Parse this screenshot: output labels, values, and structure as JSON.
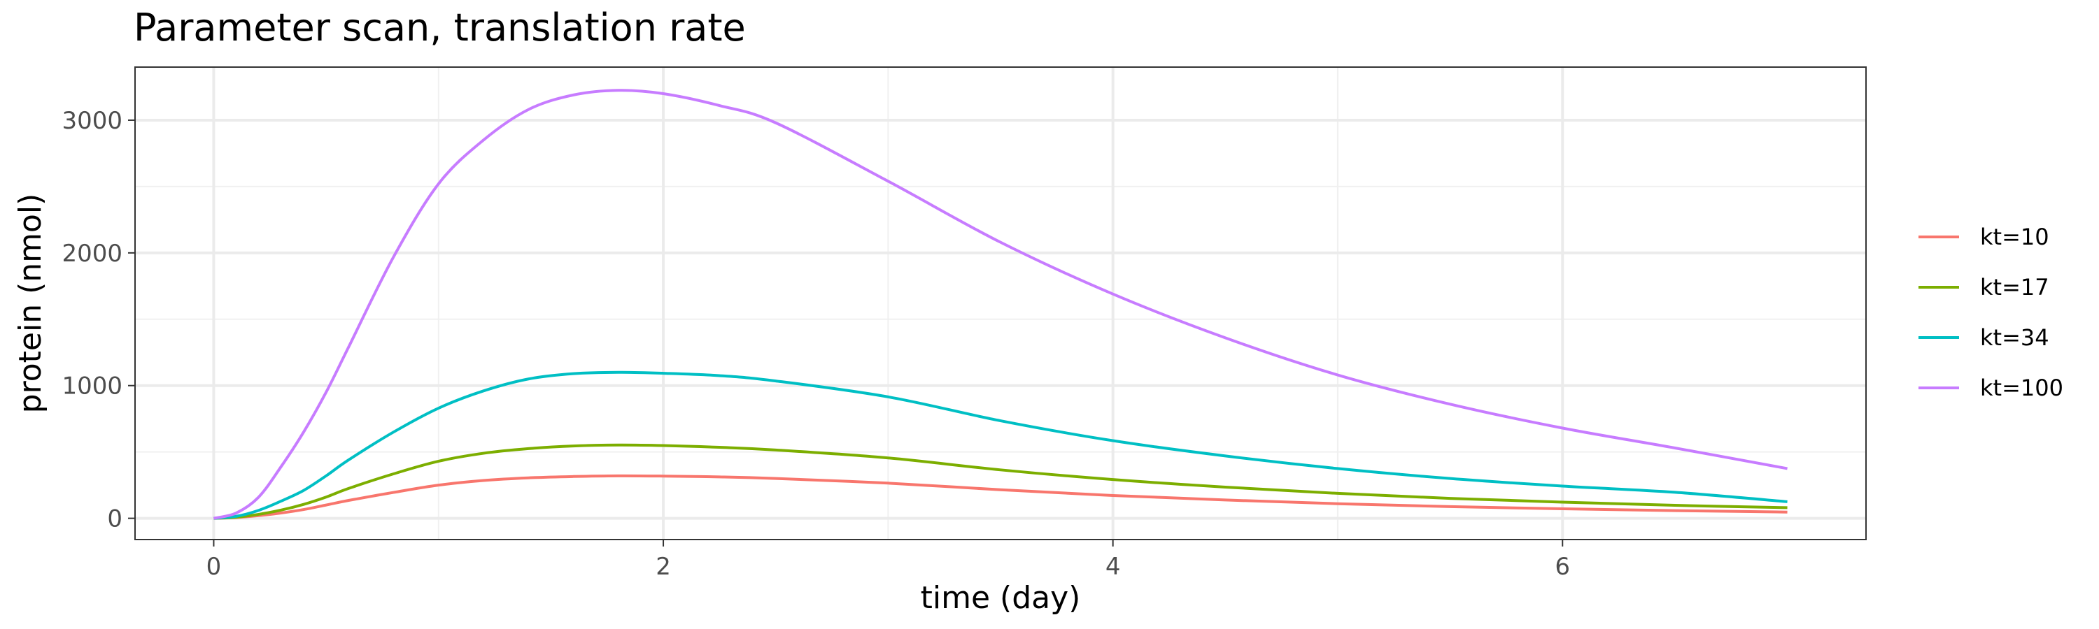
{
  "chart_data": {
    "type": "line",
    "title": "Parameter scan, translation rate",
    "xlabel": "time (day)",
    "ylabel": "protein (nmol)",
    "xlim": [
      -0.35,
      7.35
    ],
    "ylim": [
      -160,
      3400
    ],
    "xticks": [
      0,
      2,
      4,
      6
    ],
    "xtick_labels": [
      "0",
      "2",
      "4",
      "6"
    ],
    "yticks": [
      0,
      1000,
      2000,
      3000
    ],
    "ytick_labels": [
      "0",
      "1000",
      "2000",
      "3000"
    ],
    "grid": true,
    "legend": "right",
    "x": [
      0,
      0.1,
      0.2,
      0.3,
      0.4,
      0.5,
      0.6,
      0.8,
      1.0,
      1.2,
      1.4,
      1.6,
      1.8,
      2.0,
      2.25,
      2.5,
      3.0,
      3.5,
      4.0,
      4.5,
      5.0,
      5.5,
      6.0,
      6.5,
      7.0
    ],
    "series": [
      {
        "name": "kt=10",
        "color": "#F8766D",
        "values": [
          0,
          6,
          20,
          40,
          66,
          100,
          135,
          195,
          250,
          285,
          305,
          315,
          320,
          318,
          312,
          300,
          265,
          215,
          172,
          138,
          110,
          88,
          72,
          58,
          47
        ]
      },
      {
        "name": "kt=17",
        "color": "#7CAE00",
        "values": [
          0,
          8,
          30,
          62,
          105,
          160,
          225,
          335,
          430,
          490,
          525,
          545,
          552,
          548,
          535,
          515,
          455,
          365,
          292,
          235,
          188,
          150,
          122,
          98,
          80
        ]
      },
      {
        "name": "kt=34",
        "color": "#00BFC4",
        "values": [
          0,
          15,
          60,
          130,
          210,
          320,
          440,
          650,
          830,
          960,
          1050,
          1090,
          1100,
          1093,
          1075,
          1035,
          915,
          735,
          585,
          470,
          375,
          300,
          243,
          196,
          125
        ]
      },
      {
        "name": "kt=100",
        "color": "#C77CFF",
        "values": [
          0,
          40,
          160,
          390,
          650,
          950,
          1290,
          1970,
          2520,
          2850,
          3080,
          3190,
          3225,
          3200,
          3110,
          2980,
          2540,
          2080,
          1690,
          1360,
          1080,
          860,
          680,
          530,
          375
        ]
      }
    ]
  }
}
